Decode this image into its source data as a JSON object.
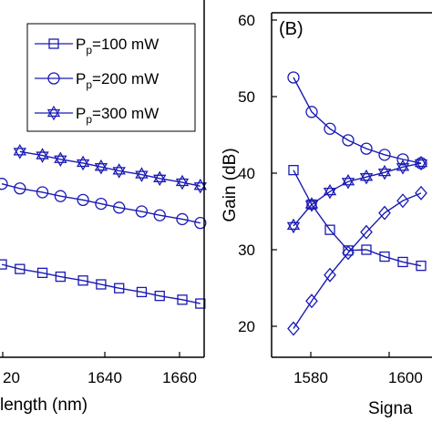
{
  "chart_data": [
    {
      "panel": "A",
      "type": "line",
      "xlabel": "length (nm)",
      "ylabel": "",
      "x_ticks": [
        "20",
        "1640",
        "1660"
      ],
      "xlim": [
        1615,
        1665
      ],
      "ylim": [
        0,
        60
      ],
      "legend_position": "top-right",
      "legend": [
        {
          "prefix": "P",
          "sub": "p",
          "suffix": "=100 mW",
          "marker": "square"
        },
        {
          "prefix": "P",
          "sub": "p",
          "suffix": "=200 mW",
          "marker": "circle"
        },
        {
          "prefix": "P",
          "sub": "p",
          "suffix": "=300 mW",
          "marker": "star"
        }
      ],
      "series": [
        {
          "marker": "square",
          "x": [
            1615,
            1619,
            1624,
            1628,
            1633,
            1637,
            1641,
            1646,
            1650,
            1655,
            1659
          ],
          "values": [
            30.2,
            29.6,
            29.1,
            28.6,
            28.1,
            27.6,
            27.1,
            26.6,
            26.1,
            25.6,
            25.1
          ]
        },
        {
          "marker": "circle",
          "x": [
            1615,
            1619,
            1624,
            1628,
            1633,
            1637,
            1641,
            1646,
            1650,
            1655,
            1659
          ],
          "values": [
            40.7,
            40.1,
            39.6,
            39.1,
            38.6,
            38.1,
            37.6,
            37.1,
            36.6,
            36.1,
            35.6
          ]
        },
        {
          "marker": "star",
          "x": [
            1619,
            1624,
            1628,
            1633,
            1637,
            1641,
            1646,
            1650,
            1655,
            1659
          ],
          "values": [
            44.9,
            44.4,
            43.9,
            43.4,
            42.9,
            42.4,
            41.9,
            41.4,
            40.9,
            40.4
          ]
        }
      ]
    },
    {
      "panel": "B",
      "type": "line",
      "xlabel": "Signa",
      "ylabel": "Gain (dB)",
      "y_ticks": [
        "20",
        "30",
        "40",
        "50",
        "60"
      ],
      "x_ticks": [
        "1580",
        "1600"
      ],
      "xlim": [
        1570,
        1610
      ],
      "ylim": [
        15,
        60
      ],
      "panel_label": "(B)",
      "series": [
        {
          "marker": "square",
          "x": [
            1574,
            1578,
            1582,
            1586,
            1590,
            1594,
            1598,
            1602
          ],
          "values": [
            40.4,
            35.9,
            32.6,
            29.9,
            30.0,
            29.1,
            28.4,
            27.9
          ]
        },
        {
          "marker": "circle",
          "x": [
            1574,
            1578,
            1582,
            1586,
            1590,
            1594,
            1598,
            1602
          ],
          "values": [
            52.5,
            48.0,
            45.8,
            44.3,
            43.2,
            42.4,
            41.8,
            41.3
          ]
        },
        {
          "marker": "star",
          "x": [
            1574,
            1578,
            1582,
            1586,
            1590,
            1594,
            1598,
            1602
          ],
          "values": [
            33.1,
            35.9,
            37.6,
            38.9,
            39.5,
            40.1,
            40.8,
            41.3
          ]
        },
        {
          "marker": "diamond",
          "x": [
            1574,
            1578,
            1582,
            1586,
            1590,
            1594,
            1598,
            1602
          ],
          "values": [
            19.7,
            23.3,
            26.7,
            29.6,
            32.3,
            34.8,
            36.4,
            37.4
          ]
        }
      ]
    }
  ],
  "colors": {
    "series": "#1a1ab4",
    "axis": "#000000"
  }
}
